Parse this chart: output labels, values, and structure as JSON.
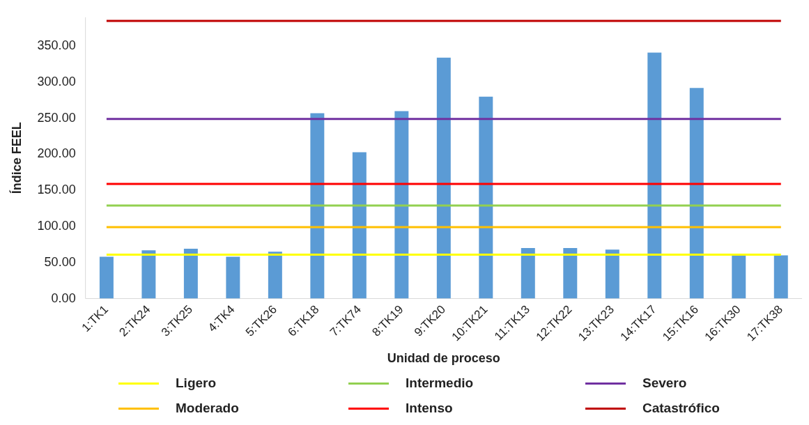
{
  "chart_data": {
    "type": "bar",
    "xlabel": "Unidad de proceso",
    "ylabel": "Índice FEEL",
    "categories": [
      "1:TK1",
      "2:TK24",
      "3:TK25",
      "4:TK4",
      "5:TK26",
      "6:TK18",
      "7:TK74",
      "8:TK19",
      "9:TK20",
      "10:TK21",
      "11:TK13",
      "12:TK22",
      "13:TK23",
      "14:TK17",
      "15:TK16",
      "16:TK30",
      "17:TK38"
    ],
    "series": [
      {
        "color": "#5b9bd5",
        "values": [
          58,
          67,
          69,
          58,
          65,
          257,
          203,
          260,
          334,
          280,
          70,
          70,
          68,
          341,
          292,
          60,
          60
        ]
      },
      {
        "type": "line",
        "name": "Ligero",
        "color": "#ffff00",
        "values": [
          61,
          61,
          61,
          61,
          61,
          61,
          61,
          61,
          61,
          61,
          61,
          61,
          61,
          61,
          61,
          61,
          61
        ]
      },
      {
        "type": "line",
        "name": "Moderado",
        "color": "#ffc000",
        "values": [
          99,
          99,
          99,
          99,
          99,
          99,
          99,
          99,
          99,
          99,
          99,
          99,
          99,
          99,
          99,
          99,
          99
        ]
      },
      {
        "type": "line",
        "name": "Intermedio",
        "color": "#92d050",
        "values": [
          129,
          129,
          129,
          129,
          129,
          129,
          129,
          129,
          129,
          129,
          129,
          129,
          129,
          129,
          129,
          129,
          129
        ]
      },
      {
        "type": "line",
        "name": "Intenso",
        "color": "#ff0000",
        "values": [
          159,
          159,
          159,
          159,
          159,
          159,
          159,
          159,
          159,
          159,
          159,
          159,
          159,
          159,
          159,
          159,
          159
        ]
      },
      {
        "type": "line",
        "name": "Severo",
        "color": "#7030a0",
        "values": [
          249,
          249,
          249,
          249,
          249,
          249,
          249,
          249,
          249,
          249,
          249,
          249,
          249,
          249,
          249,
          249,
          249
        ]
      },
      {
        "type": "line",
        "name": "Catastrófico",
        "color": "#c00000",
        "values": [
          385,
          385,
          385,
          385,
          385,
          385,
          385,
          385,
          385,
          385,
          385,
          385,
          385,
          385,
          385,
          385,
          385
        ]
      }
    ],
    "ylim": [
      0,
      390
    ],
    "yticks": [
      {
        "value": 0,
        "label": "0.00"
      },
      {
        "value": 50,
        "label": "50.00"
      },
      {
        "value": 100,
        "label": "100.00"
      },
      {
        "value": 150,
        "label": "150.00"
      },
      {
        "value": 200,
        "label": "200.00"
      },
      {
        "value": 250,
        "label": "250.00"
      },
      {
        "value": 300,
        "label": "300.00"
      },
      {
        "value": 350,
        "label": "350.00"
      }
    ],
    "grid": false,
    "legend": "bottom",
    "marker": "none",
    "line_style": "solid"
  }
}
